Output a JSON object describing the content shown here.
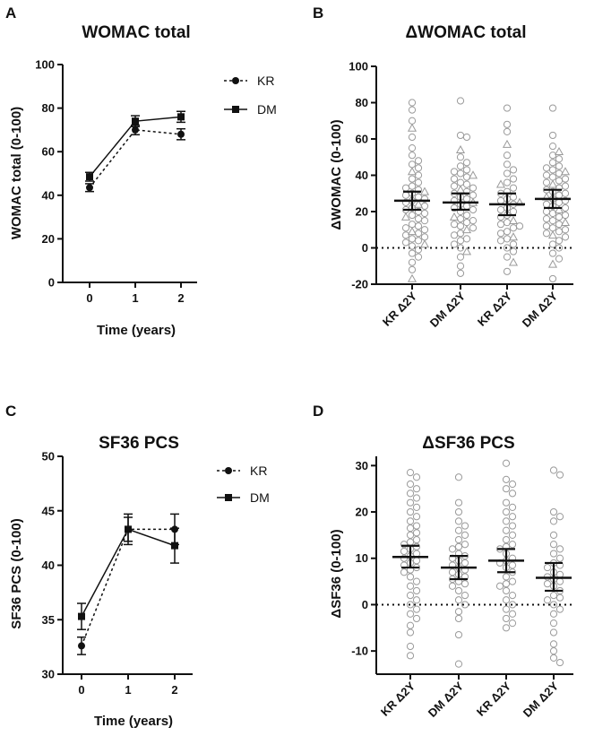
{
  "chart_data": [
    {
      "panel": "A",
      "type": "line",
      "title": "WOMAC total",
      "xlabel": "Time (years)",
      "ylabel": "WOMAC total (0-100)",
      "x": [
        0,
        1,
        2
      ],
      "xticks": [
        "0",
        "1",
        "2"
      ],
      "ylim": [
        0,
        100
      ],
      "yticks": [
        "0",
        "20",
        "40",
        "60",
        "80",
        "100"
      ],
      "legend_position": "right",
      "series": [
        {
          "name": "KR",
          "marker": "circle",
          "line": "dashed",
          "values": [
            43.5,
            70,
            68
          ],
          "errors": [
            1.8,
            2.2,
            2.5
          ]
        },
        {
          "name": "DM",
          "marker": "square",
          "line": "solid",
          "values": [
            48.5,
            74,
            76
          ],
          "errors": [
            2,
            2.5,
            2.5
          ]
        }
      ]
    },
    {
      "panel": "B",
      "type": "scatter",
      "title": "ΔWOMAC total",
      "xlabel": "",
      "ylabel": "ΔWOMAC (0-100)",
      "ylim": [
        -20,
        100
      ],
      "yticks": [
        "-20",
        "0",
        "20",
        "40",
        "60",
        "80",
        "100"
      ],
      "categories": [
        "KR Δ2Y",
        "DM Δ2Y",
        "KR Δ2Y",
        "DM Δ2Y"
      ],
      "reference_line": 0,
      "groups": [
        {
          "mean": 26,
          "ci": [
            21,
            31
          ],
          "values": [
            80,
            76,
            70,
            66,
            61,
            55,
            51,
            48,
            46,
            44,
            42,
            40,
            38,
            36,
            34,
            33,
            32,
            31,
            30,
            29,
            28,
            27,
            26,
            25,
            24,
            23,
            22,
            21,
            20,
            19,
            18,
            17,
            16,
            15,
            13,
            12,
            11,
            10,
            9,
            8,
            7,
            6,
            5,
            4,
            3,
            2,
            1,
            -1,
            -3,
            -5,
            -8,
            -12,
            -17
          ]
        },
        {
          "mean": 25,
          "ci": [
            21,
            30
          ],
          "values": [
            81,
            62,
            61,
            54,
            50,
            47,
            45,
            43,
            42,
            41,
            40,
            39,
            38,
            36,
            35,
            34,
            33,
            32,
            31,
            30,
            29,
            28,
            27,
            26,
            25,
            24,
            23,
            22,
            21,
            20,
            18,
            17,
            16,
            15,
            14,
            13,
            12,
            11,
            10,
            8,
            7,
            5,
            4,
            2,
            0,
            -2,
            -5,
            -10,
            -14
          ]
        },
        {
          "mean": 24,
          "ci": [
            18,
            30
          ],
          "values": [
            77,
            68,
            64,
            57,
            51,
            46,
            43,
            41,
            38,
            36,
            35,
            33,
            31,
            30,
            28,
            27,
            26,
            25,
            24,
            22,
            21,
            20,
            18,
            17,
            15,
            14,
            13,
            12,
            11,
            9,
            8,
            6,
            5,
            4,
            2,
            0,
            -2,
            -5,
            -8,
            -13
          ]
        },
        {
          "mean": 27,
          "ci": [
            22,
            32
          ],
          "values": [
            77,
            62,
            56,
            53,
            51,
            49,
            47,
            45,
            44,
            43,
            42,
            41,
            40,
            39,
            38,
            37,
            36,
            35,
            34,
            33,
            32,
            31,
            30,
            29,
            28,
            27,
            26,
            25,
            24,
            23,
            22,
            21,
            20,
            19,
            18,
            17,
            16,
            15,
            14,
            13,
            12,
            11,
            10,
            9,
            8,
            7,
            6,
            4,
            2,
            0,
            -3,
            -6,
            -9,
            -17
          ]
        }
      ]
    },
    {
      "panel": "C",
      "type": "line",
      "title": "SF36 PCS",
      "xlabel": "Time (years)",
      "ylabel": "SF36 PCS (0-100)",
      "x": [
        0,
        1,
        2
      ],
      "xticks": [
        "0",
        "1",
        "2"
      ],
      "ylim": [
        30,
        50
      ],
      "yticks": [
        "30",
        "35",
        "40",
        "45",
        "50"
      ],
      "legend_position": "right",
      "series": [
        {
          "name": "KR",
          "marker": "circle",
          "line": "dashed",
          "values": [
            32.6,
            43.3,
            43.3
          ],
          "errors": [
            0.8,
            1.1,
            1.4
          ]
        },
        {
          "name": "DM",
          "marker": "square",
          "line": "solid",
          "values": [
            35.3,
            43.3,
            41.8
          ],
          "errors": [
            1.2,
            1.4,
            1.6
          ]
        }
      ]
    },
    {
      "panel": "D",
      "type": "scatter",
      "title": "ΔSF36 PCS",
      "xlabel": "",
      "ylabel": "ΔSF36 (0-100)",
      "ylim": [
        -15,
        32
      ],
      "yticks": [
        "-10",
        "0",
        "10",
        "20",
        "30"
      ],
      "categories": [
        "KR Δ2Y",
        "DM Δ2Y",
        "KR Δ2Y",
        "DM Δ2Y"
      ],
      "reference_line": 0,
      "groups": [
        {
          "mean": 10.3,
          "ci": [
            8,
            12.7
          ],
          "values": [
            28.5,
            27.5,
            26,
            25,
            24,
            23,
            22,
            21,
            20,
            19,
            18,
            17,
            16.5,
            15.5,
            15,
            14,
            13.5,
            13,
            12.5,
            12,
            11.5,
            11,
            10.5,
            10,
            9.5,
            9,
            8.5,
            8,
            7.5,
            7,
            6,
            5,
            4,
            3,
            2,
            1,
            0,
            -1,
            -2,
            -3,
            -4.5,
            -6,
            -9,
            -11
          ]
        },
        {
          "mean": 8,
          "ci": [
            5.5,
            10.5
          ],
          "values": [
            27.5,
            22,
            20,
            18,
            17,
            16,
            15,
            14,
            13,
            12.5,
            12,
            11,
            10.5,
            10,
            9.5,
            9,
            8.5,
            8,
            7.5,
            7,
            6.5,
            6,
            5.5,
            5,
            4.5,
            4,
            3,
            2,
            1,
            0,
            -1.5,
            -3,
            -6.5,
            -12.8
          ]
        },
        {
          "mean": 9.5,
          "ci": [
            7,
            12
          ],
          "values": [
            30.5,
            27,
            26,
            25,
            24,
            22,
            21,
            20,
            19,
            18,
            17,
            16,
            15,
            14,
            13,
            12.5,
            12,
            11,
            10,
            9.5,
            9,
            8.5,
            8,
            7,
            6,
            5,
            4.5,
            4,
            3,
            2,
            1,
            0,
            -1,
            -2,
            -3,
            -4,
            -5
          ]
        },
        {
          "mean": 5.8,
          "ci": [
            3,
            9
          ],
          "values": [
            29,
            28,
            20,
            19,
            18,
            15,
            13,
            12,
            11,
            10,
            9,
            8.5,
            8,
            7,
            6.5,
            6,
            5.5,
            5,
            4.5,
            4,
            3,
            2,
            1.5,
            1,
            0,
            -1,
            -2,
            -4,
            -6,
            -8.5,
            -10,
            -11.5,
            -12.5
          ]
        }
      ]
    }
  ]
}
